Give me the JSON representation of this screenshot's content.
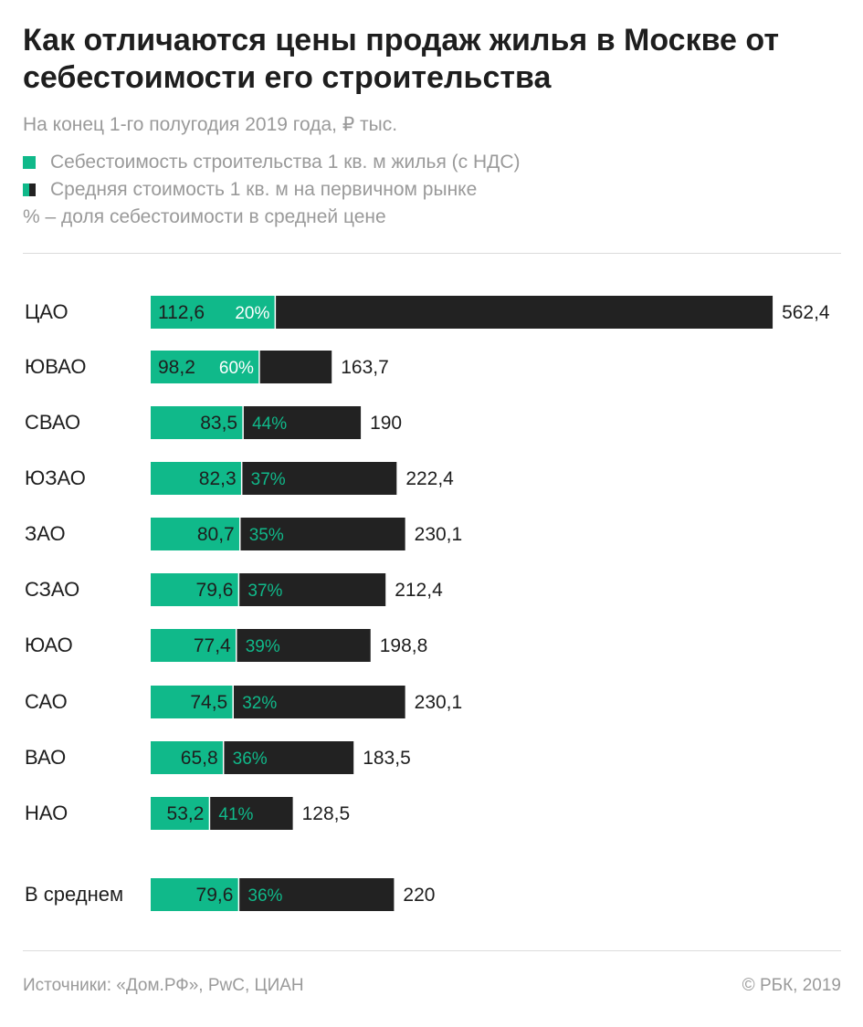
{
  "header": {
    "title": "Как отличаются цены продаж жилья в Москве от себестоимости его строительства",
    "subtitle": "На конец 1-го полугодия 2019 года, ₽ тыс.",
    "legend": [
      {
        "label": "Себестоимость строительства 1 кв. м жилья (с НДС)",
        "color": "#10b98a"
      },
      {
        "label": "Средняя стоимость 1 кв. м на первичном рынке",
        "color": "#222222"
      }
    ],
    "note": "% – доля себестоимости в средней цене"
  },
  "chart_data": {
    "type": "bar",
    "orientation": "horizontal",
    "title": "Как отличаются цены продаж жилья в Москве от себестоимости его строительства",
    "subtitle": "На конец 1-го полугодия 2019 года, ₽ тыс.",
    "categories": [
      "ЦАО",
      "ЮВАО",
      "СВАО",
      "ЮЗАО",
      "ЗАО",
      "СЗАО",
      "ЮАО",
      "САО",
      "ВАО",
      "НАО",
      "В среднем"
    ],
    "series": [
      {
        "name": "Себестоимость строительства 1 кв. м жилья (с НДС)",
        "color": "#10b98a",
        "values": [
          112.6,
          98.2,
          83.5,
          82.3,
          80.7,
          79.6,
          77.4,
          74.5,
          65.8,
          53.2,
          79.6
        ],
        "labels": [
          "112,6",
          "98,2",
          "83,5",
          "82,3",
          "80,7",
          "79,6",
          "77,4",
          "74,5",
          "65,8",
          "53,2",
          "79,6"
        ]
      },
      {
        "name": "Средняя стоимость 1 кв. м на первичном рынке",
        "color": "#222222",
        "values": [
          562.4,
          163.7,
          190,
          222.4,
          230.1,
          212.4,
          198.8,
          230.1,
          183.5,
          128.5,
          220
        ],
        "labels": [
          "562,4",
          "163,7",
          "190",
          "222,4",
          "230,1",
          "212,4",
          "198,8",
          "230,1",
          "183,5",
          "128,5",
          "220"
        ]
      }
    ],
    "share_labels": [
      "20%",
      "60%",
      "44%",
      "37%",
      "35%",
      "37%",
      "39%",
      "32%",
      "36%",
      "41%",
      "36%"
    ],
    "share_label_inside_green": [
      true,
      true,
      false,
      false,
      false,
      false,
      false,
      false,
      false,
      false,
      false
    ],
    "grid": false,
    "legend_position": "top-left"
  },
  "footer": {
    "sources": "Источники: «Дом.РФ», PwC, ЦИАН",
    "copyright": "© РБК, 2019"
  }
}
